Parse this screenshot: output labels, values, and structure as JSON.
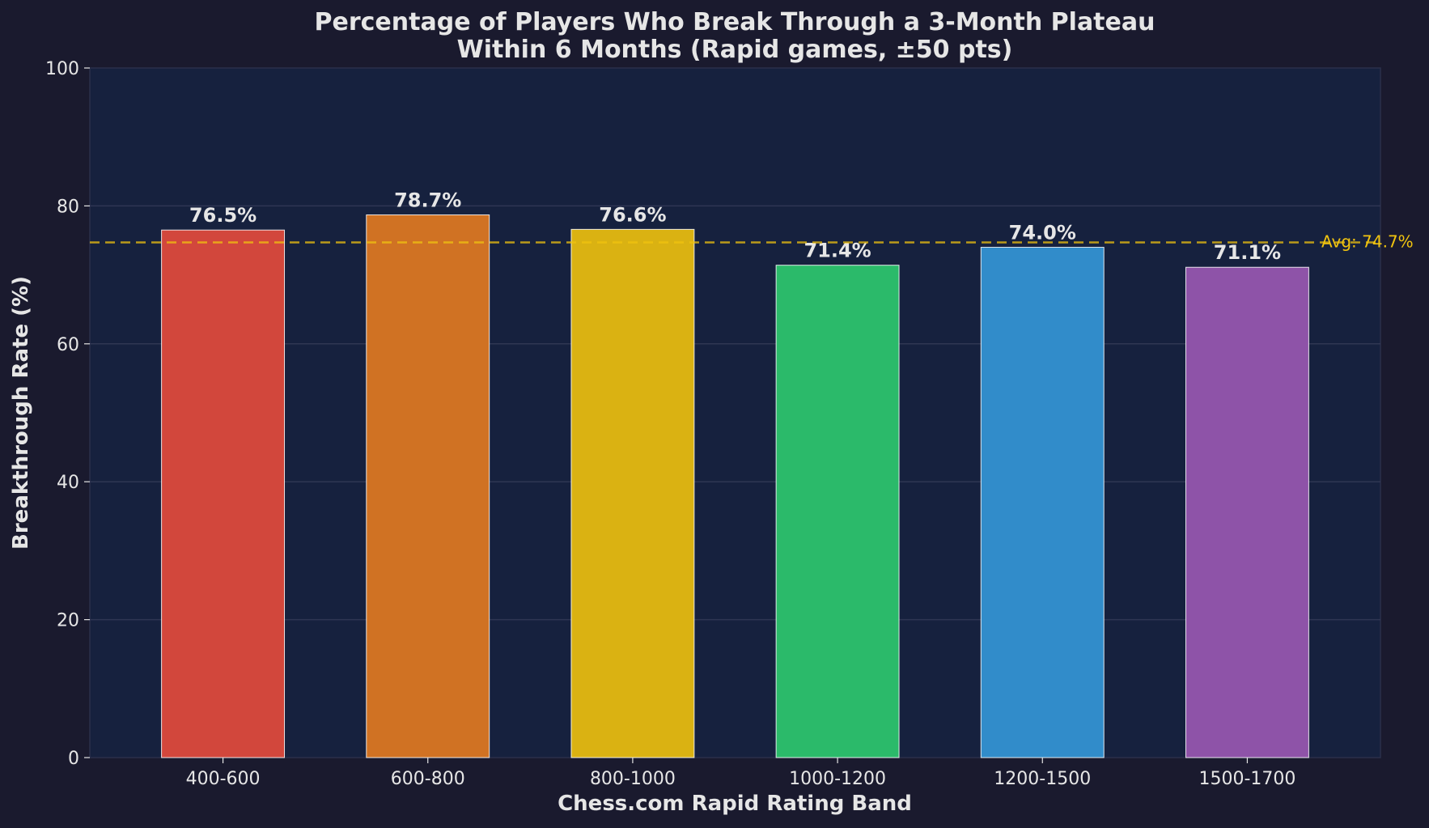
{
  "chart_data": {
    "type": "bar",
    "title_lines": [
      "Percentage of Players Who Break Through a 3-Month Plateau",
      "Within 6 Months (Rapid games, ±50 pts)"
    ],
    "xlabel": "Chess.com Rapid Rating Band",
    "ylabel": "Breakthrough Rate (%)",
    "categories": [
      "400-600",
      "600-800",
      "800-1000",
      "1000-1200",
      "1200-1500",
      "1500-1700"
    ],
    "values": [
      76.5,
      78.7,
      76.6,
      71.4,
      74.0,
      71.1
    ],
    "value_labels": [
      "76.5%",
      "78.7%",
      "76.6%",
      "71.4%",
      "74.0%",
      "71.1%"
    ],
    "colors": [
      "#d2473c",
      "#d07223",
      "#dab212",
      "#2bba6a",
      "#318cca",
      "#8e53a8"
    ],
    "ylim": [
      0,
      100
    ],
    "yticks": [
      0,
      20,
      40,
      60,
      80,
      100
    ],
    "average": {
      "value": 74.7,
      "label": "Avg: 74.7%",
      "color": "#f1c40f"
    },
    "grid": true,
    "legend": "none",
    "background": "#1a1a2e",
    "plot_background": "#16213e"
  }
}
